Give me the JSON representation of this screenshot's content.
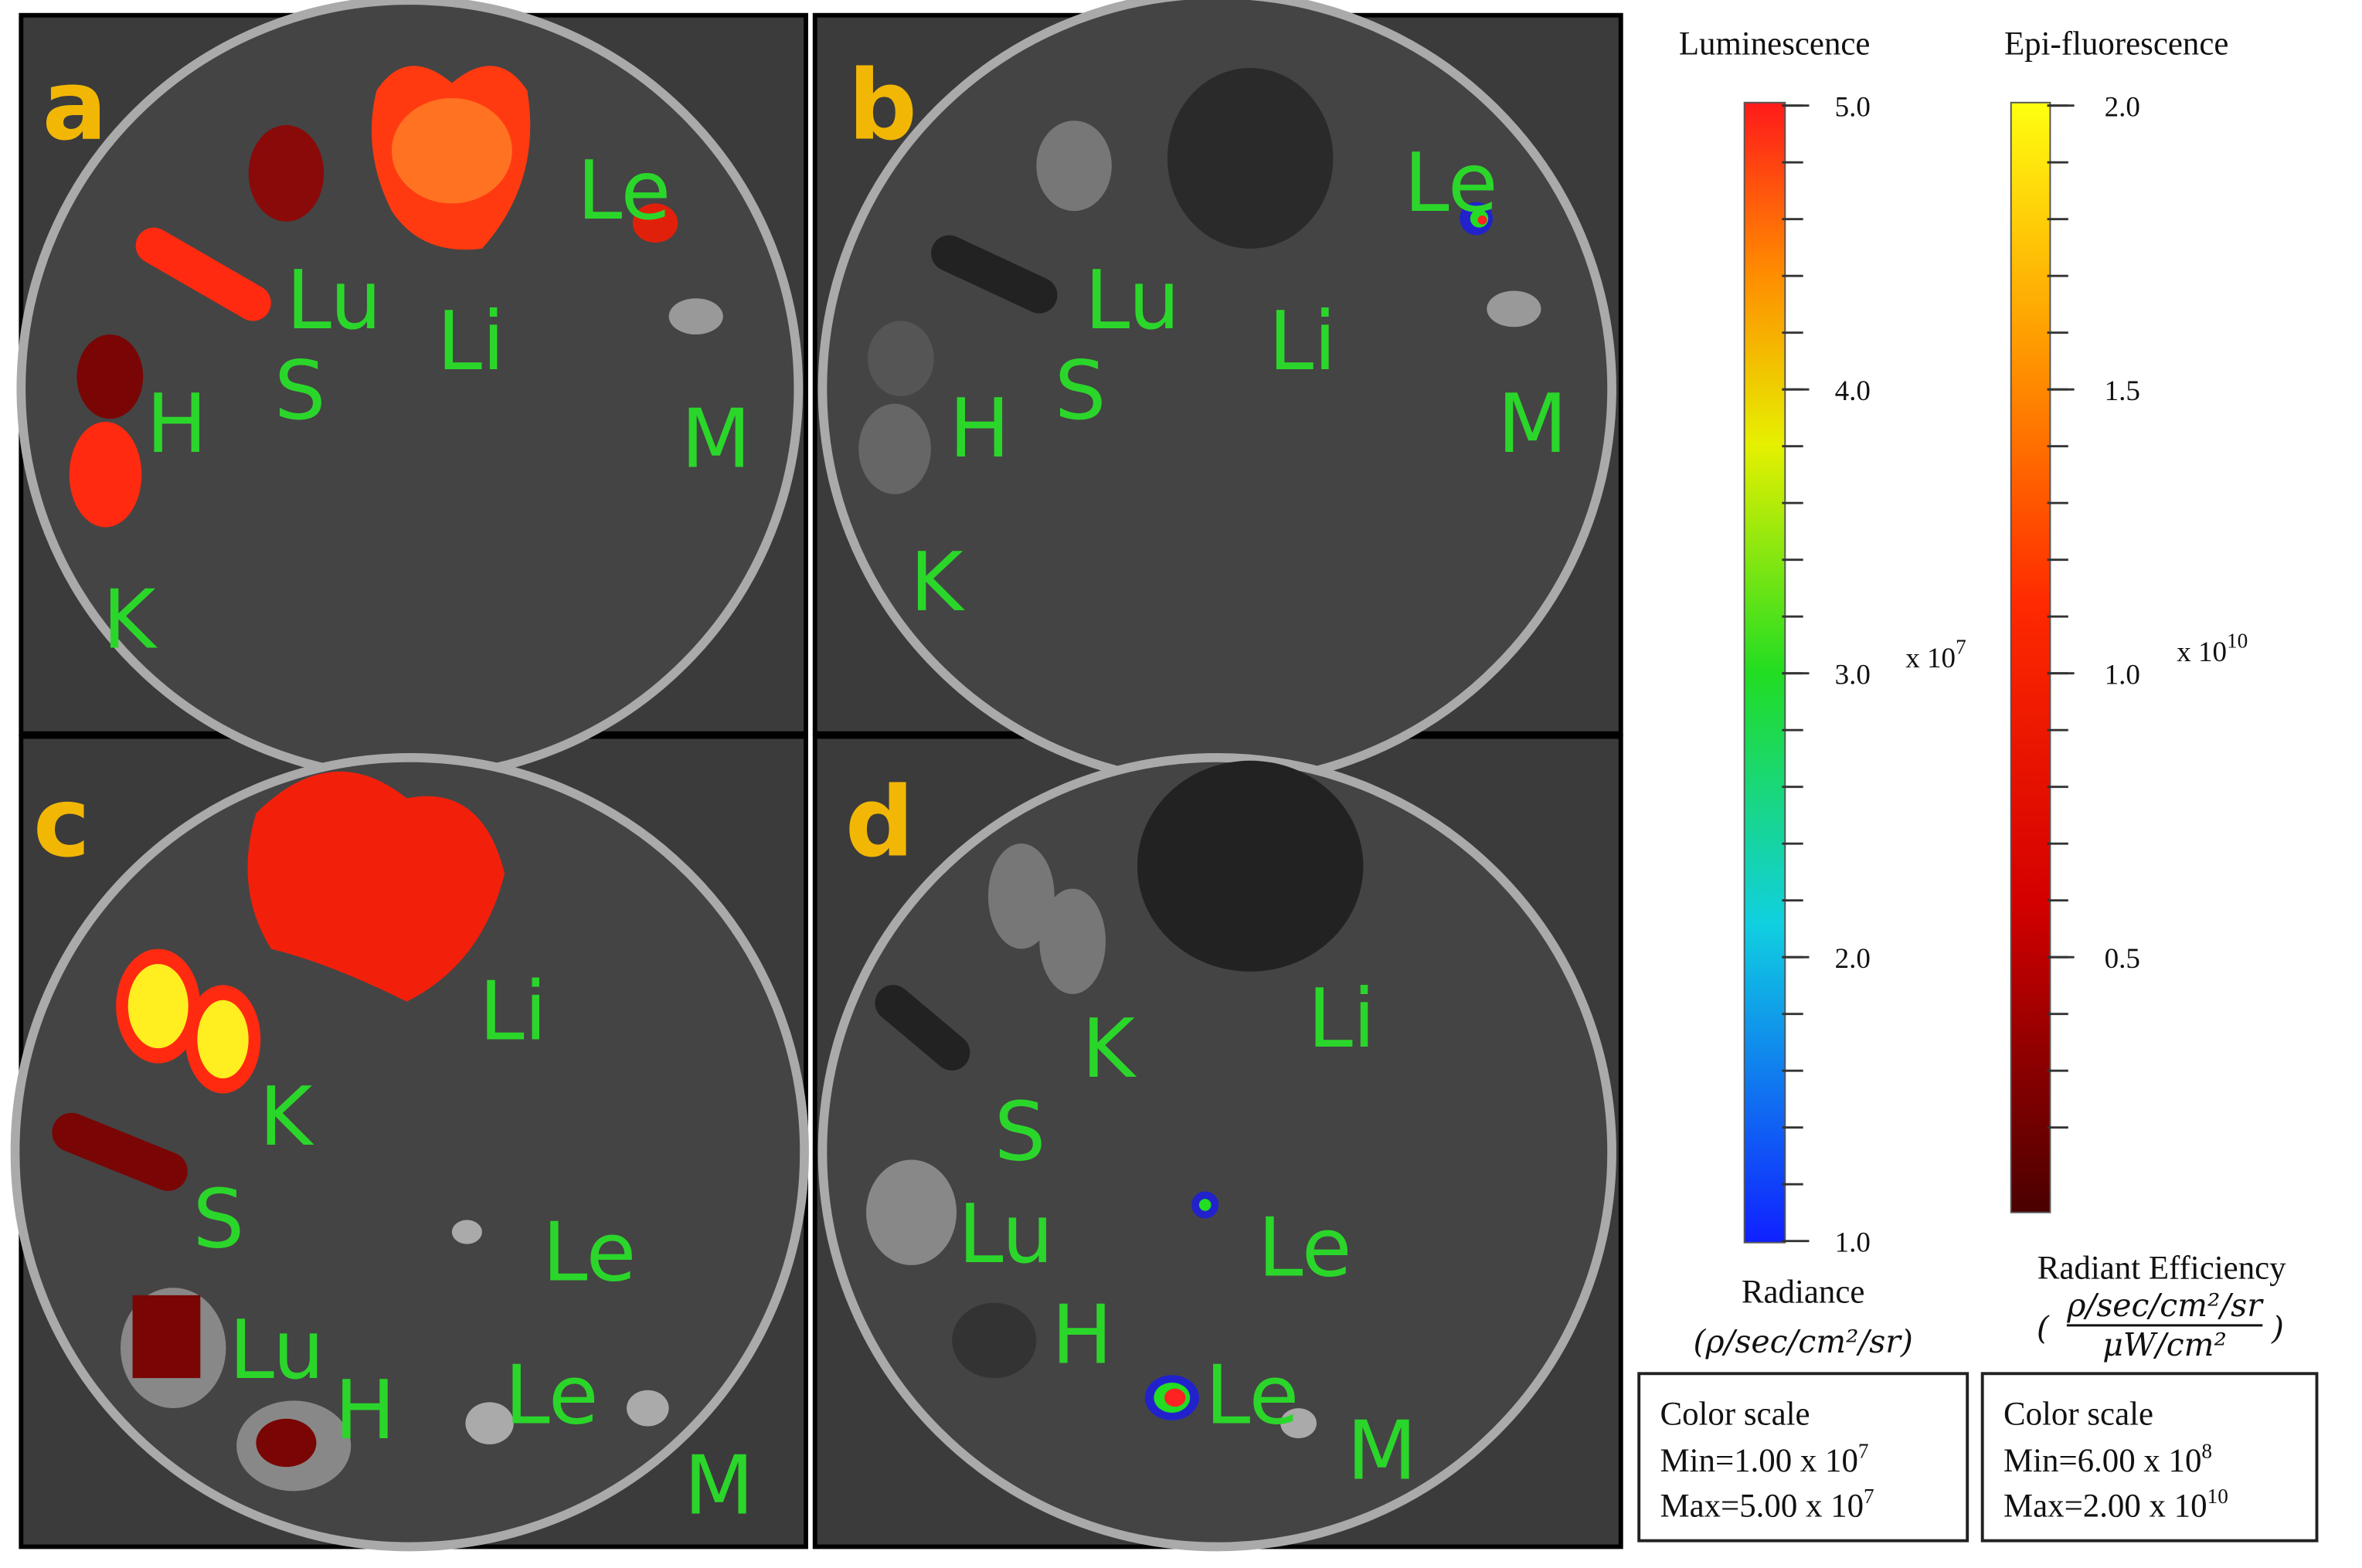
{
  "panels": [
    {
      "letter": "a",
      "labels": [
        "Le",
        "Lu",
        "Li",
        "S",
        "H",
        "M",
        "K"
      ]
    },
    {
      "letter": "b",
      "labels": [
        "Le",
        "Lu",
        "Li",
        "S",
        "H",
        "M",
        "K"
      ]
    },
    {
      "letter": "c",
      "labels": [
        "Li",
        "K",
        "S",
        "Le",
        "Lu",
        "H",
        "Le",
        "M"
      ]
    },
    {
      "letter": "d",
      "labels": [
        "Li",
        "K",
        "S",
        "Lu",
        "Le",
        "H",
        "Le",
        "M"
      ]
    }
  ],
  "scales": [
    {
      "title": "Luminescence",
      "ticks": [
        "5.0",
        "4.0",
        "3.0",
        "2.0",
        "1.0"
      ],
      "multiplier": {
        "base": "x 10",
        "exponent": "7"
      },
      "unit_name": "Radiance",
      "unit": "(ρ/sec/cm²/sr)",
      "box": {
        "heading": "Color scale",
        "min": {
          "text": "Min=1.00 x 10",
          "exponent": "7"
        },
        "max": {
          "text": "Max=5.00 x 10",
          "exponent": "7"
        }
      }
    },
    {
      "title": "Epi-fluorescence",
      "ticks": [
        "2.0",
        "1.5",
        "1.0",
        "0.5"
      ],
      "multiplier": {
        "base": "x 10",
        "exponent": "10"
      },
      "unit_name": "Radiant Efficiency",
      "unit_numerator": "ρ/sec/cm²/sr",
      "unit_denominator": "μW/cm²",
      "box": {
        "heading": "Color scale",
        "min": {
          "text": "Min=6.00 x 10",
          "exponent": "8"
        },
        "max": {
          "text": "Max=2.00 x 10",
          "exponent": "10"
        }
      }
    }
  ]
}
